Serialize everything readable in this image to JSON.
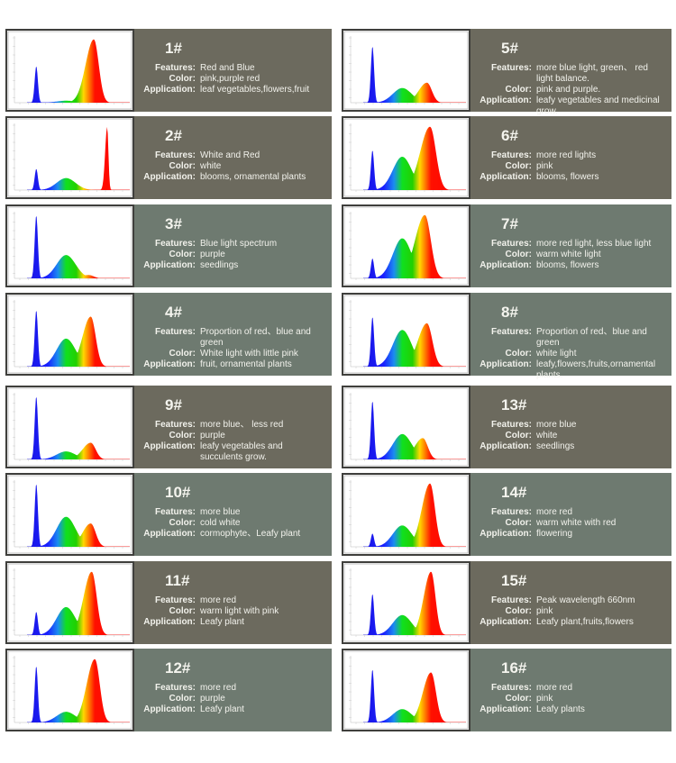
{
  "labels": {
    "features": "Features:",
    "color": "Color:",
    "application": "Application:"
  },
  "colors": {
    "dark": "#6c6a5e",
    "green": "#6e7a70"
  },
  "cards": [
    {
      "num": "1#",
      "features": "Red and Blue",
      "color": "pink,purple red",
      "application": "leaf vegetables,flowers,fruit",
      "spectrum": {
        "blue": 0.55,
        "green": 0.03,
        "red": 0.95,
        "redWidth": 1.0,
        "redPeak": 0.65
      }
    },
    {
      "num": "5#",
      "features": "more blue light, green、 red light balance.",
      "color": "pink and purple.",
      "application": "leafy vegetables and medicinal grow.",
      "spectrum": {
        "blue": 0.85,
        "green": 0.22,
        "red": 0.3,
        "redWidth": 1.0,
        "redPeak": 0.62
      }
    },
    {
      "num": "2#",
      "features": "White and Red",
      "color": "white",
      "application": "blooms, ornamental plants",
      "spectrum": {
        "blue": 0.32,
        "green": 0.18,
        "red": 0.95,
        "redWidth": 0.25,
        "redPeak": 0.78
      }
    },
    {
      "num": "6#",
      "features": "more red lights",
      "color": "pink",
      "application": "blooms, flowers",
      "spectrum": {
        "blue": 0.6,
        "green": 0.5,
        "red": 0.95,
        "redWidth": 1.2,
        "redPeak": 0.65
      }
    },
    {
      "num": "3#",
      "features": "Blue light spectrum",
      "color": "purple",
      "application": "seedlings",
      "spectrum": {
        "blue": 0.95,
        "green": 0.35,
        "red": 0.05,
        "redWidth": 1.0,
        "redPeak": 0.6
      }
    },
    {
      "num": "7#",
      "features": "more red light, less blue light",
      "color": "warm white light",
      "application": "blooms, flowers",
      "spectrum": {
        "blue": 0.3,
        "green": 0.6,
        "red": 0.95,
        "redWidth": 1.2,
        "redPeak": 0.6
      }
    },
    {
      "num": "4#",
      "features": "Proportion of red、blue and green",
      "color": "White light with little pink",
      "application": "fruit, ornamental plants",
      "spectrum": {
        "blue": 0.85,
        "green": 0.42,
        "red": 0.75,
        "redWidth": 1.0,
        "redPeak": 0.62
      }
    },
    {
      "num": "8#",
      "features": "Proportion of red、blue and green",
      "color": "white light",
      "application": "leafy,flowers,fruits,ornamental plants.",
      "spectrum": {
        "blue": 0.75,
        "green": 0.55,
        "red": 0.65,
        "redWidth": 1.1,
        "redPeak": 0.62
      }
    },
    {
      "num": "9#",
      "features": "more blue、 less red",
      "color": "purple",
      "application": "leafy vegetables and succulents grow.",
      "spectrum": {
        "blue": 0.95,
        "green": 0.12,
        "red": 0.25,
        "redWidth": 1.0,
        "redPeak": 0.62
      }
    },
    {
      "num": "13#",
      "features": "more blue",
      "color": "white",
      "application": "seedlings",
      "spectrum": {
        "blue": 0.88,
        "green": 0.38,
        "red": 0.32,
        "redWidth": 1.0,
        "redPeak": 0.58
      }
    },
    {
      "num": "10#",
      "features": "more blue",
      "color": "cold white",
      "application": "cormophyte、Leafy plant",
      "spectrum": {
        "blue": 0.95,
        "green": 0.45,
        "red": 0.35,
        "redWidth": 1.0,
        "redPeak": 0.62
      }
    },
    {
      "num": "14#",
      "features": "more red",
      "color": "warm white with red",
      "application": "flowering",
      "spectrum": {
        "blue": 0.2,
        "green": 0.32,
        "red": 0.95,
        "redWidth": 1.0,
        "redPeak": 0.65
      }
    },
    {
      "num": "11#",
      "features": "more red",
      "color": "warm light with pink",
      "application": "Leafy plant",
      "spectrum": {
        "blue": 0.35,
        "green": 0.42,
        "red": 0.95,
        "redWidth": 1.0,
        "redPeak": 0.63
      }
    },
    {
      "num": "15#",
      "features": "Peak wavelength 660nm",
      "color": "pink",
      "application": "Leafy plant,fruits,flowers",
      "spectrum": {
        "blue": 0.62,
        "green": 0.3,
        "red": 0.95,
        "redWidth": 0.9,
        "redPeak": 0.66
      }
    },
    {
      "num": "12#",
      "features": "more red",
      "color": "purple",
      "application": "Leafy plant",
      "spectrum": {
        "blue": 0.85,
        "green": 0.16,
        "red": 0.95,
        "redWidth": 1.0,
        "redPeak": 0.66
      }
    },
    {
      "num": "16#",
      "features": "more red",
      "color": "pink",
      "application": "Leafy plants",
      "spectrum": {
        "blue": 0.8,
        "green": 0.2,
        "red": 0.75,
        "redWidth": 1.0,
        "redPeak": 0.66
      }
    }
  ]
}
